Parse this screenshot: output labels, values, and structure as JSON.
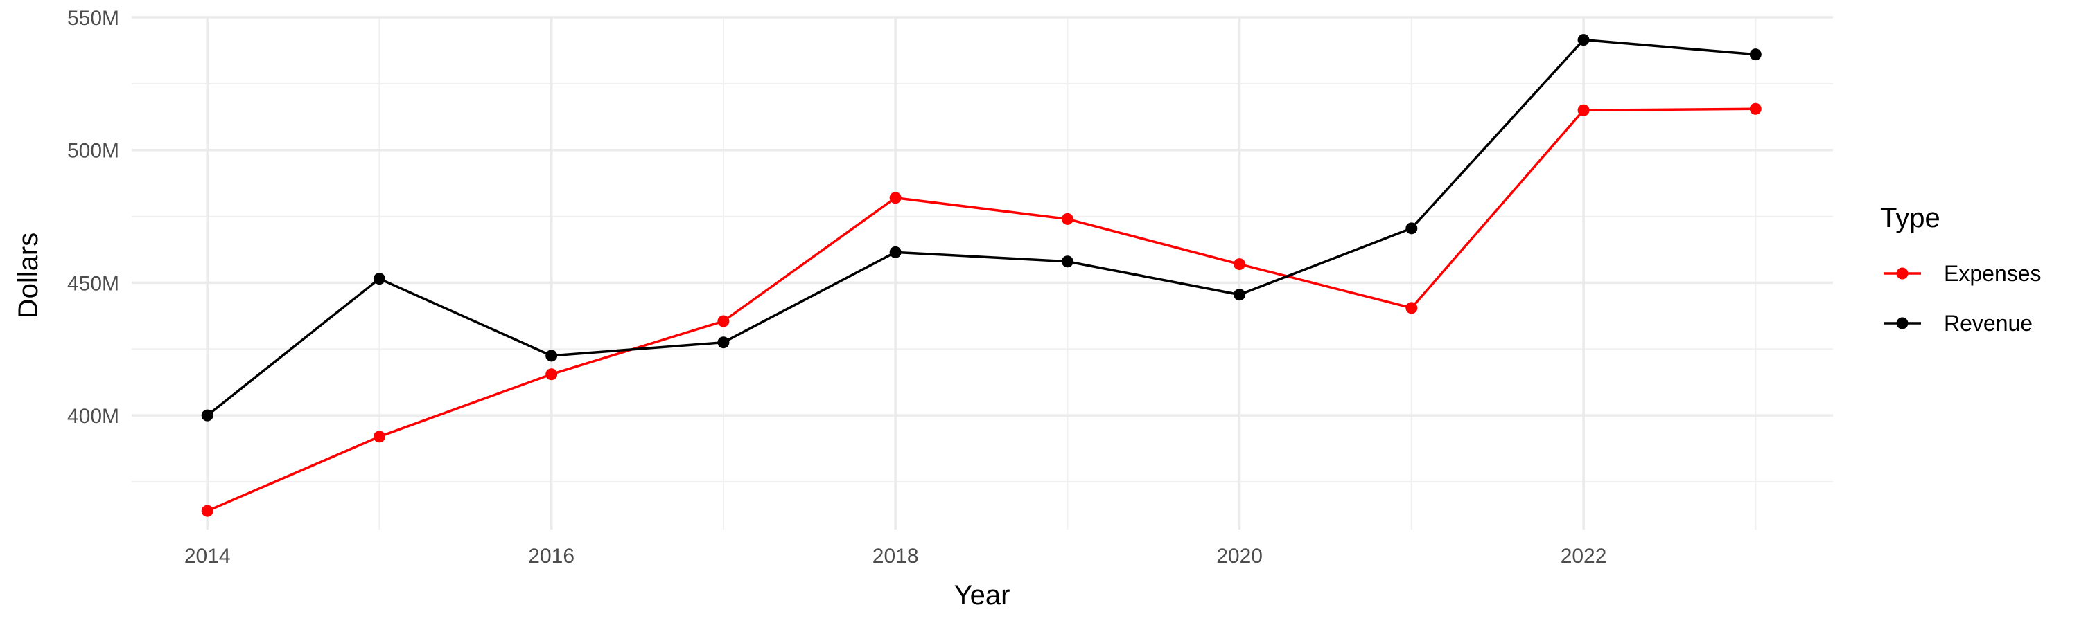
{
  "chart_data": {
    "type": "line",
    "xlabel": "Year",
    "ylabel": "Dollars",
    "x": [
      2014,
      2015,
      2016,
      2017,
      2018,
      2019,
      2020,
      2021,
      2022,
      2023
    ],
    "x_ticks": [
      2014,
      2016,
      2018,
      2020,
      2022
    ],
    "x_tick_labels": [
      "2014",
      "2016",
      "2018",
      "2020",
      "2022"
    ],
    "xlim": [
      2013.56,
      2023.45
    ],
    "y_ticks": [
      400000000,
      450000000,
      500000000,
      550000000
    ],
    "y_tick_labels": [
      "400M",
      "450M",
      "500M",
      "550M"
    ],
    "ylim": [
      357000000,
      550000000
    ],
    "grid": true,
    "legend": {
      "title": "Type",
      "position": "right"
    },
    "series": [
      {
        "name": "Expenses",
        "color": "#ff0000",
        "values": [
          364000000,
          392000000,
          415500000,
          435500000,
          482000000,
          474000000,
          457000000,
          440500000,
          515000000,
          515500000
        ]
      },
      {
        "name": "Revenue",
        "color": "#000000",
        "values": [
          400000000,
          451500000,
          422500000,
          427500000,
          461500000,
          458000000,
          445500000,
          470500000,
          541500000,
          536000000
        ]
      }
    ]
  }
}
